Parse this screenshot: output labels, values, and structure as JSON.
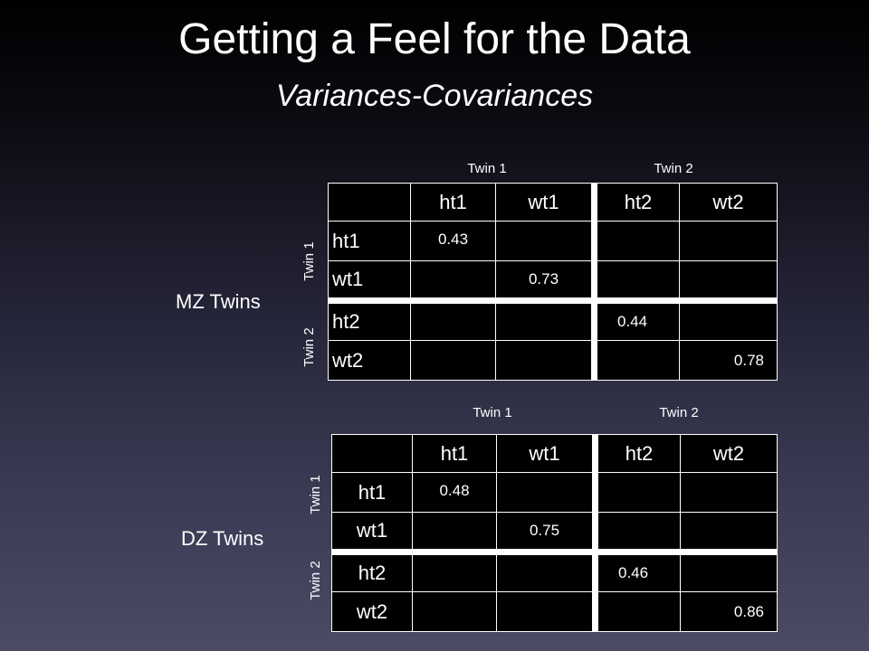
{
  "slide": {
    "title": "Getting a Feel for the Data",
    "subtitle": "Variances-Covariances"
  },
  "mz": {
    "label": "MZ Twins",
    "col_groups": [
      "Twin 1",
      "Twin 2"
    ],
    "row_groups": [
      "Twin 1",
      "Twin 2"
    ],
    "columns": [
      "ht1",
      "wt1",
      "ht2",
      "wt2"
    ],
    "rows": [
      {
        "label": "ht1",
        "cells": [
          "0.43",
          "",
          "",
          ""
        ]
      },
      {
        "label": "wt1",
        "cells": [
          "",
          "0.73",
          "",
          ""
        ]
      },
      {
        "label": "ht2",
        "cells": [
          "",
          "",
          "0.44",
          ""
        ]
      },
      {
        "label": "wt2",
        "cells": [
          "",
          "",
          "",
          "0.78"
        ]
      }
    ]
  },
  "dz": {
    "label": "DZ Twins",
    "col_groups": [
      "Twin 1",
      "Twin 2"
    ],
    "row_groups": [
      "Twin 1",
      "Twin 2"
    ],
    "columns": [
      "ht1",
      "wt1",
      "ht2",
      "wt2"
    ],
    "rows": [
      {
        "label": "ht1",
        "cells": [
          "0.48",
          "",
          "",
          ""
        ]
      },
      {
        "label": "wt1",
        "cells": [
          "",
          "0.75",
          "",
          ""
        ]
      },
      {
        "label": "ht2",
        "cells": [
          "",
          "",
          "0.46",
          ""
        ]
      },
      {
        "label": "wt2",
        "cells": [
          "",
          "",
          "",
          "0.86"
        ]
      }
    ]
  }
}
